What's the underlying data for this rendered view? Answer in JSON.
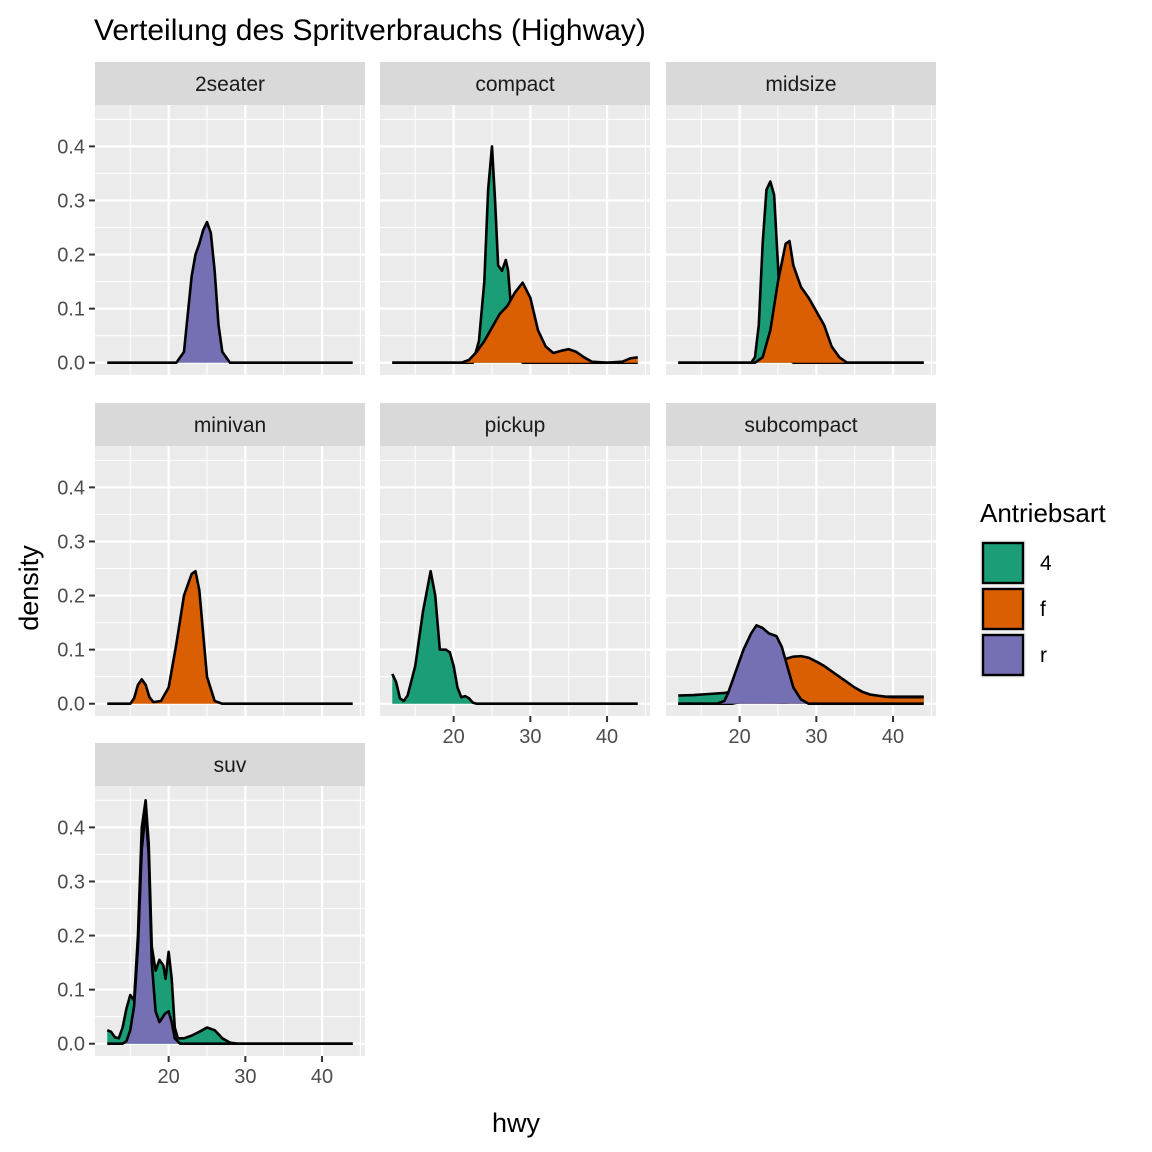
{
  "chart_data": {
    "type": "area",
    "title": "Verteilung des Spritverbrauchs (Highway)",
    "xlabel": "hwy",
    "ylabel": "density",
    "xlim": [
      12,
      44
    ],
    "ylim": [
      0,
      0.45
    ],
    "x_ticks": [
      20,
      30,
      40
    ],
    "y_ticks": [
      0.0,
      0.1,
      0.2,
      0.3,
      0.4
    ],
    "y_tick_labels": [
      "0.0",
      "0.1",
      "0.2",
      "0.3",
      "0.4"
    ],
    "grid": true,
    "legend": {
      "title": "Antriebsart",
      "position": "right",
      "items": [
        {
          "key": "4",
          "label": "4",
          "color": "#1B9E77"
        },
        {
          "key": "f",
          "label": "f",
          "color": "#D95F02"
        },
        {
          "key": "r",
          "label": "r",
          "color": "#7570B3"
        }
      ]
    },
    "panels": [
      {
        "title": "2seater",
        "series": [
          {
            "name": "r",
            "points": [
              [
                12,
                0
              ],
              [
                21,
                0
              ],
              [
                22,
                0.02
              ],
              [
                22.5,
                0.09
              ],
              [
                23,
                0.16
              ],
              [
                23.5,
                0.2
              ],
              [
                24,
                0.22
              ],
              [
                24.5,
                0.245
              ],
              [
                25,
                0.26
              ],
              [
                25.5,
                0.24
              ],
              [
                26,
                0.17
              ],
              [
                26.5,
                0.07
              ],
              [
                27,
                0.02
              ],
              [
                28,
                0
              ],
              [
                44,
                0
              ]
            ]
          }
        ]
      },
      {
        "title": "compact",
        "series": [
          {
            "name": "4",
            "points": [
              [
                12,
                0
              ],
              [
                22.5,
                0
              ],
              [
                23.3,
                0.04
              ],
              [
                24,
                0.15
              ],
              [
                24.5,
                0.32
              ],
              [
                25,
                0.4
              ],
              [
                25.4,
                0.3
              ],
              [
                25.8,
                0.18
              ],
              [
                26.3,
                0.17
              ],
              [
                26.8,
                0.19
              ],
              [
                27.1,
                0.17
              ],
              [
                27.6,
                0.08
              ],
              [
                28.2,
                0.02
              ],
              [
                29,
                0
              ],
              [
                44,
                0
              ]
            ]
          },
          {
            "name": "f",
            "points": [
              [
                12,
                0
              ],
              [
                21,
                0
              ],
              [
                22,
                0.005
              ],
              [
                23,
                0.02
              ],
              [
                24,
                0.04
              ],
              [
                25,
                0.065
              ],
              [
                26,
                0.09
              ],
              [
                27,
                0.105
              ],
              [
                28,
                0.13
              ],
              [
                29,
                0.148
              ],
              [
                30,
                0.12
              ],
              [
                31,
                0.06
              ],
              [
                32,
                0.03
              ],
              [
                33,
                0.018
              ],
              [
                34,
                0.022
              ],
              [
                35,
                0.025
              ],
              [
                36,
                0.02
              ],
              [
                37,
                0.01
              ],
              [
                38,
                0.002
              ],
              [
                40,
                0
              ],
              [
                42,
                0.002
              ],
              [
                43,
                0.008
              ],
              [
                44,
                0.01
              ]
            ]
          }
        ]
      },
      {
        "title": "midsize",
        "series": [
          {
            "name": "4",
            "points": [
              [
                12,
                0
              ],
              [
                21.5,
                0
              ],
              [
                22,
                0.01
              ],
              [
                22.5,
                0.07
              ],
              [
                23,
                0.22
              ],
              [
                23.5,
                0.32
              ],
              [
                24,
                0.335
              ],
              [
                24.5,
                0.31
              ],
              [
                25,
                0.18
              ],
              [
                25.5,
                0.05
              ],
              [
                26.5,
                0.005
              ],
              [
                27,
                0
              ],
              [
                44,
                0
              ]
            ]
          },
          {
            "name": "f",
            "points": [
              [
                12,
                0
              ],
              [
                22,
                0
              ],
              [
                23,
                0.01
              ],
              [
                24,
                0.06
              ],
              [
                25,
                0.15
              ],
              [
                26,
                0.22
              ],
              [
                26.5,
                0.225
              ],
              [
                27,
                0.18
              ],
              [
                28,
                0.14
              ],
              [
                29,
                0.12
              ],
              [
                30,
                0.095
              ],
              [
                31,
                0.07
              ],
              [
                32,
                0.03
              ],
              [
                33,
                0.01
              ],
              [
                34,
                0
              ],
              [
                44,
                0
              ]
            ]
          }
        ]
      },
      {
        "title": "minivan",
        "series": [
          {
            "name": "f",
            "points": [
              [
                12,
                0
              ],
              [
                15,
                0
              ],
              [
                15.5,
                0.01
              ],
              [
                16,
                0.035
              ],
              [
                16.5,
                0.045
              ],
              [
                17,
                0.035
              ],
              [
                17.5,
                0.012
              ],
              [
                18,
                0.003
              ],
              [
                19,
                0.005
              ],
              [
                20,
                0.03
              ],
              [
                21,
                0.11
              ],
              [
                22,
                0.2
              ],
              [
                23,
                0.24
              ],
              [
                23.5,
                0.245
              ],
              [
                24,
                0.21
              ],
              [
                24.5,
                0.13
              ],
              [
                25,
                0.05
              ],
              [
                26,
                0.005
              ],
              [
                27,
                0
              ],
              [
                44,
                0
              ]
            ]
          }
        ]
      },
      {
        "title": "pickup",
        "series": [
          {
            "name": "4",
            "points": [
              [
                12,
                0.055
              ],
              [
                12.5,
                0.04
              ],
              [
                13,
                0.01
              ],
              [
                13.5,
                0.005
              ],
              [
                14,
                0.015
              ],
              [
                15,
                0.07
              ],
              [
                16,
                0.17
              ],
              [
                17,
                0.245
              ],
              [
                17.6,
                0.2
              ],
              [
                18.2,
                0.1
              ],
              [
                19,
                0.1
              ],
              [
                19.5,
                0.095
              ],
              [
                20,
                0.07
              ],
              [
                20.5,
                0.03
              ],
              [
                21,
                0.012
              ],
              [
                21.5,
                0.014
              ],
              [
                22,
                0.01
              ],
              [
                22.5,
                0.002
              ],
              [
                23,
                0
              ],
              [
                44,
                0
              ]
            ]
          }
        ]
      },
      {
        "title": "subcompact",
        "series": [
          {
            "name": "4",
            "points": [
              [
                12,
                0.015
              ],
              [
                14,
                0.016
              ],
              [
                16,
                0.018
              ],
              [
                18,
                0.02
              ],
              [
                19,
                0.022
              ],
              [
                20,
                0.022
              ],
              [
                21,
                0.018
              ],
              [
                22,
                0.012
              ],
              [
                23,
                0.006
              ],
              [
                24,
                0.003
              ],
              [
                26,
                0.002
              ],
              [
                28,
                0.005
              ],
              [
                30,
                0.008
              ],
              [
                32,
                0.01
              ],
              [
                34,
                0.012
              ],
              [
                36,
                0.013
              ],
              [
                38,
                0.013
              ],
              [
                40,
                0.013
              ],
              [
                42,
                0.013
              ],
              [
                44,
                0.013
              ]
            ]
          },
          {
            "name": "f",
            "points": [
              [
                12,
                0
              ],
              [
                19,
                0
              ],
              [
                20,
                0.003
              ],
              [
                21,
                0.01
              ],
              [
                22,
                0.025
              ],
              [
                23,
                0.045
              ],
              [
                24,
                0.06
              ],
              [
                25,
                0.075
              ],
              [
                26,
                0.083
              ],
              [
                27,
                0.087
              ],
              [
                28,
                0.088
              ],
              [
                29,
                0.085
              ],
              [
                30,
                0.078
              ],
              [
                31,
                0.07
              ],
              [
                32,
                0.06
              ],
              [
                33,
                0.05
              ],
              [
                34,
                0.04
              ],
              [
                35,
                0.03
              ],
              [
                36,
                0.022
              ],
              [
                37,
                0.017
              ],
              [
                38,
                0.015
              ],
              [
                39,
                0.013
              ],
              [
                40,
                0.012
              ],
              [
                42,
                0.012
              ],
              [
                44,
                0.012
              ]
            ]
          },
          {
            "name": "r",
            "points": [
              [
                12,
                0
              ],
              [
                17,
                0
              ],
              [
                18,
                0.005
              ],
              [
                18.5,
                0.02
              ],
              [
                19.5,
                0.06
              ],
              [
                20.5,
                0.1
              ],
              [
                21.5,
                0.13
              ],
              [
                22.2,
                0.145
              ],
              [
                23,
                0.14
              ],
              [
                23.8,
                0.13
              ],
              [
                24.8,
                0.125
              ],
              [
                25.5,
                0.105
              ],
              [
                26.2,
                0.07
              ],
              [
                27,
                0.03
              ],
              [
                28,
                0.008
              ],
              [
                29,
                0
              ],
              [
                44,
                0
              ]
            ]
          }
        ]
      },
      {
        "title": "suv",
        "series": [
          {
            "name": "4",
            "points": [
              [
                12,
                0.025
              ],
              [
                12.5,
                0.022
              ],
              [
                13,
                0.012
              ],
              [
                13.5,
                0.01
              ],
              [
                14,
                0.03
              ],
              [
                14.5,
                0.065
              ],
              [
                15,
                0.09
              ],
              [
                15.5,
                0.08
              ],
              [
                16,
                0.2
              ],
              [
                16.5,
                0.4
              ],
              [
                17,
                0.45
              ],
              [
                17.4,
                0.37
              ],
              [
                17.8,
                0.18
              ],
              [
                18.3,
                0.135
              ],
              [
                18.8,
                0.155
              ],
              [
                19.3,
                0.145
              ],
              [
                19.6,
                0.12
              ],
              [
                20,
                0.17
              ],
              [
                20.4,
                0.12
              ],
              [
                20.8,
                0.03
              ],
              [
                21.2,
                0.01
              ],
              [
                22,
                0.01
              ],
              [
                23,
                0.015
              ],
              [
                24,
                0.022
              ],
              [
                25,
                0.03
              ],
              [
                26,
                0.025
              ],
              [
                27,
                0.01
              ],
              [
                28,
                0.002
              ],
              [
                29,
                0
              ],
              [
                44,
                0
              ]
            ]
          },
          {
            "name": "r",
            "points": [
              [
                12,
                0
              ],
              [
                14,
                0
              ],
              [
                14.5,
                0.005
              ],
              [
                15,
                0.025
              ],
              [
                15.5,
                0.07
              ],
              [
                16,
                0.18
              ],
              [
                16.5,
                0.36
              ],
              [
                17,
                0.43
              ],
              [
                17.4,
                0.35
              ],
              [
                17.8,
                0.15
              ],
              [
                18.3,
                0.06
              ],
              [
                18.8,
                0.04
              ],
              [
                19.5,
                0.055
              ],
              [
                20,
                0.06
              ],
              [
                20.4,
                0.04
              ],
              [
                20.8,
                0.01
              ],
              [
                21.5,
                0
              ],
              [
                44,
                0
              ]
            ]
          }
        ]
      }
    ]
  }
}
